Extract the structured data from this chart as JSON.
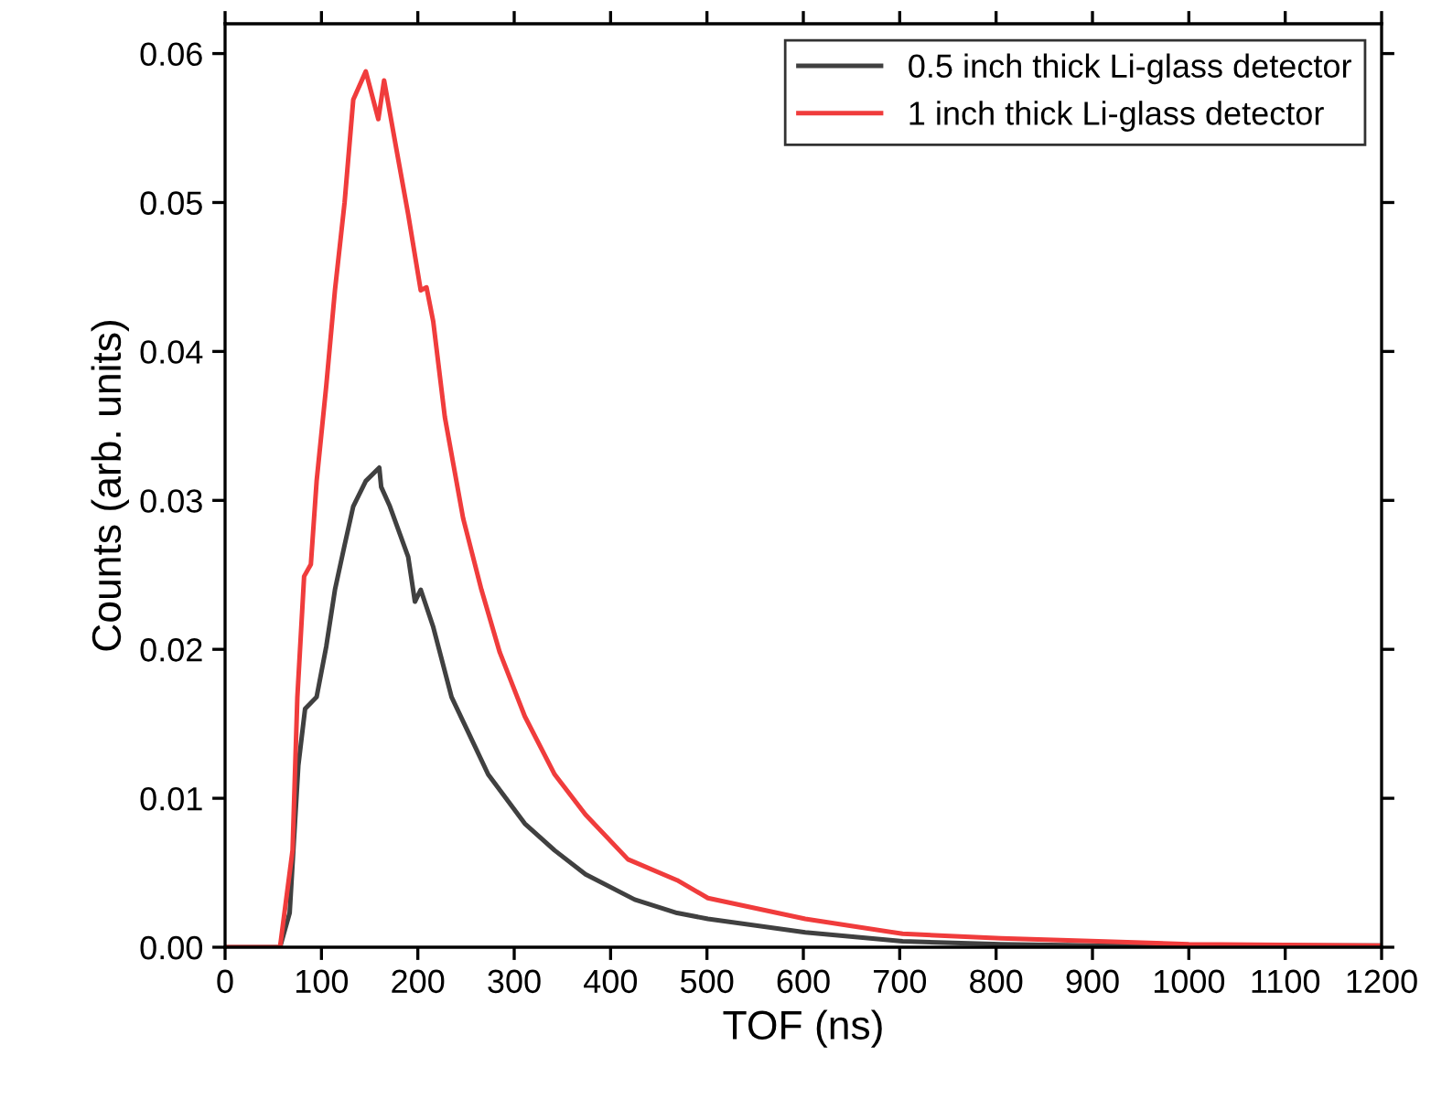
{
  "chart_data": {
    "type": "line",
    "xlabel": "TOF (ns)",
    "ylabel": "Counts (arb. units)",
    "xlim": [
      0,
      1200
    ],
    "xticks": [
      0,
      100,
      200,
      300,
      400,
      500,
      600,
      700,
      800,
      900,
      1000,
      1100,
      1200
    ],
    "ylim": [
      0,
      0.062
    ],
    "yticks": [
      {
        "value": 0,
        "label": "0.00"
      },
      {
        "value": 0.01,
        "label": "0.01"
      },
      {
        "value": 0.02,
        "label": "0.02"
      },
      {
        "value": 0.03,
        "label": "0.03"
      },
      {
        "value": 0.04,
        "label": "0.04"
      },
      {
        "value": 0.05,
        "label": "0.05"
      },
      {
        "value": 0.06,
        "label": "0.06"
      }
    ],
    "grid": false,
    "legend": "top right",
    "marker": "none",
    "line_style": "solid",
    "series": [
      {
        "name": "0.5 inch thick Li-glass detector",
        "color": "#404040",
        "x": [
          0,
          57,
          67,
          76,
          83,
          95,
          105,
          114,
          124,
          133,
          146,
          160,
          162,
          171,
          190,
          197,
          203,
          216,
          235,
          254,
          273,
          311,
          342,
          374,
          425,
          469,
          501,
          602,
          703,
          805,
          906,
          1000,
          1200
        ],
        "values": [
          0,
          0,
          0.0023,
          0.0122,
          0.016,
          0.0168,
          0.0202,
          0.024,
          0.027,
          0.0296,
          0.0313,
          0.0322,
          0.0309,
          0.0296,
          0.0262,
          0.0232,
          0.024,
          0.0215,
          0.0168,
          0.0142,
          0.0116,
          0.0083,
          0.0065,
          0.0049,
          0.0032,
          0.0023,
          0.0019,
          0.001,
          0.0004,
          0.0002,
          0.0001,
          0.0001,
          0.0001
        ]
      },
      {
        "name": "1 inch thick Li-glass detector",
        "color": "#f03c3c",
        "x": [
          0,
          57,
          70,
          75,
          82,
          89,
          95,
          105,
          114,
          124,
          133,
          146,
          159,
          165,
          178,
          190,
          203,
          209,
          216,
          228,
          247,
          266,
          285,
          311,
          342,
          374,
          418,
          469,
          501,
          602,
          703,
          805,
          906,
          1000,
          1200
        ],
        "values": [
          0,
          0,
          0.0065,
          0.0168,
          0.0249,
          0.0257,
          0.0313,
          0.0377,
          0.0441,
          0.05,
          0.0569,
          0.0588,
          0.0556,
          0.0582,
          0.0535,
          0.0492,
          0.0441,
          0.0443,
          0.042,
          0.0356,
          0.0288,
          0.024,
          0.0198,
          0.0155,
          0.0116,
          0.0089,
          0.0059,
          0.0045,
          0.0033,
          0.0019,
          0.0009,
          0.0006,
          0.0004,
          0.0002,
          0.0001
        ]
      }
    ]
  }
}
